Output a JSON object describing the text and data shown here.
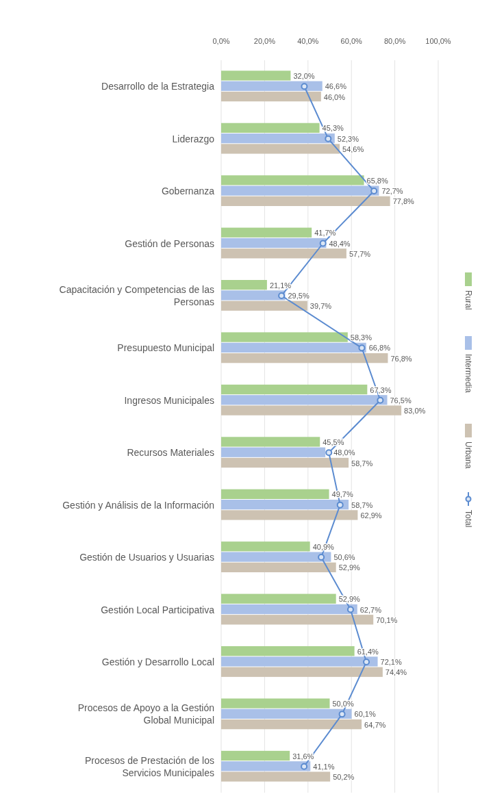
{
  "chart_data": {
    "type": "bar",
    "orientation": "horizontal",
    "categories": [
      "Desarrollo de la Estrategia",
      "Liderazgo",
      "Gobernanza",
      "Gestión de Personas",
      "Capacitación y Competencias de las Personas",
      "Presupuesto Municipal",
      "Ingresos Municipales",
      "Recursos Materiales",
      "Gestión y Análisis de la Información",
      "Gestión de Usuarios y Usuarias",
      "Gestión Local Participativa",
      "Gestión y Desarrollo Local",
      "Procesos de Apoyo a la Gestión Global Municipal",
      "Procesos de Prestación de los Servicios Municipales"
    ],
    "series": [
      {
        "name": "Rural",
        "color": "#a9d18e",
        "values": [
          32.0,
          45.3,
          65.8,
          41.7,
          21.1,
          58.3,
          67.3,
          45.5,
          49.7,
          40.9,
          52.9,
          61.4,
          50.0,
          31.6
        ],
        "value_labels": [
          "32,0%",
          "45,3%",
          "65,8%",
          "41,7%",
          "21,1%",
          "58,3%",
          "67,3%",
          "45,5%",
          "49,7%",
          "40,9%",
          "52,9%",
          "61,4%",
          "50,0%",
          "31,6%"
        ]
      },
      {
        "name": "Intermedia",
        "color": "#a9c0e8",
        "values": [
          46.6,
          52.3,
          72.7,
          48.4,
          29.5,
          66.8,
          76.5,
          48.0,
          58.7,
          50.6,
          62.7,
          72.1,
          60.1,
          41.1
        ],
        "value_labels": [
          "46,6%",
          "52,3%",
          "72,7%",
          "48,4%",
          "29,5%",
          "66,8%",
          "76,5%",
          "48,0%",
          "58,7%",
          "50,6%",
          "62,7%",
          "72,1%",
          "60,1%",
          "41,1%"
        ]
      },
      {
        "name": "Urbana",
        "color": "#cdc2b2",
        "values": [
          46.0,
          54.6,
          77.8,
          57.7,
          39.7,
          76.8,
          83.0,
          58.7,
          62.9,
          52.9,
          70.1,
          74.4,
          64.7,
          50.2
        ],
        "value_labels": [
          "46,0%",
          "54,6%",
          "77,8%",
          "57,7%",
          "39,7%",
          "76,8%",
          "83,0%",
          "58,7%",
          "62,9%",
          "52,9%",
          "70,1%",
          "74,4%",
          "64,7%",
          "50,2%"
        ]
      },
      {
        "name": "Total",
        "type": "line",
        "color": "#5b8bd0",
        "marker": "circle",
        "values": [
          38.3,
          49.3,
          70.4,
          46.9,
          27.8,
          64.8,
          73.3,
          49.6,
          54.8,
          46.1,
          59.6,
          66.9,
          55.7,
          38.2
        ]
      }
    ],
    "xlim": [
      0,
      100
    ],
    "xticks": [
      {
        "value": 0,
        "label": "0,0%"
      },
      {
        "value": 20,
        "label": "20,0%"
      },
      {
        "value": 40,
        "label": "40,0%"
      },
      {
        "value": 60,
        "label": "60,0%"
      },
      {
        "value": 80,
        "label": "80,0%"
      },
      {
        "value": 100,
        "label": "100,0%"
      }
    ],
    "grid": "x",
    "legend": "right"
  }
}
